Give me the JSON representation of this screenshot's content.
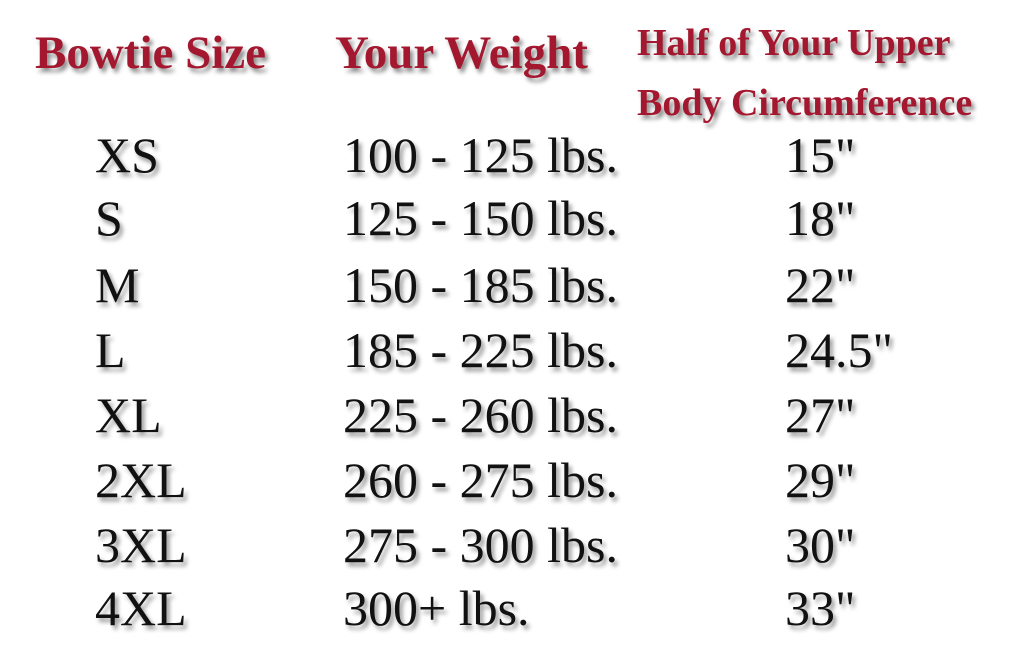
{
  "colors": {
    "header": "#a3172f",
    "body_text": "#111111",
    "background": "#ffffff"
  },
  "headers": {
    "size": "Bowtie Size",
    "weight": "Your Weight",
    "circumference_line1": "Half of Your Upper",
    "circumference_line2": "Body Circumference"
  },
  "rows": [
    {
      "size": "XS",
      "weight": "100 - 125 lbs.",
      "circumference": "15\""
    },
    {
      "size": "S",
      "weight": "125 - 150 lbs.",
      "circumference": "18\""
    },
    {
      "size": "M",
      "weight": "150 - 185 lbs.",
      "circumference": "22\""
    },
    {
      "size": "L",
      "weight": "185 - 225 lbs.",
      "circumference": "24.5\""
    },
    {
      "size": "XL",
      "weight": "225 - 260 lbs.",
      "circumference": "27\""
    },
    {
      "size": "2XL",
      "weight": "260 - 275 lbs.",
      "circumference": "29\""
    },
    {
      "size": "3XL",
      "weight": "275 - 300 lbs.",
      "circumference": "30\""
    },
    {
      "size": "4XL",
      "weight": "300+ lbs.",
      "circumference": "33\""
    }
  ]
}
